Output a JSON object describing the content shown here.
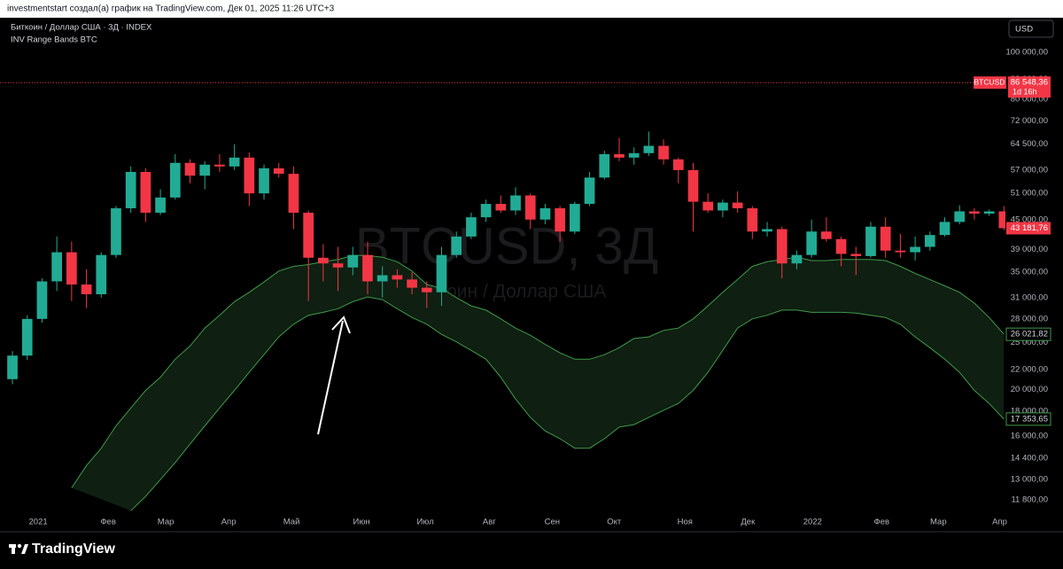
{
  "header": {
    "text": "investmentstart создал(а) график на TradingView.com, Дек 01, 2025 11:26 UTC+3"
  },
  "footer": {
    "logo": "TradingView"
  },
  "currency_button": "USD",
  "chart_data": {
    "type": "candlestick",
    "log_scale": true,
    "watermark": {
      "symbol": "BTCUSD, 3Д",
      "description": "Биткоин / Доллар США"
    },
    "xlim": [
      -0.84,
      67.1
    ],
    "xticks": [
      {
        "value": 1.74,
        "label": "2021"
      },
      {
        "value": 6.47,
        "label": "Фев"
      },
      {
        "value": 10.36,
        "label": "Мар"
      },
      {
        "value": 14.61,
        "label": "Апр"
      },
      {
        "value": 18.86,
        "label": "Май"
      },
      {
        "value": 23.59,
        "label": "Июн"
      },
      {
        "value": 27.9,
        "label": "Июл"
      },
      {
        "value": 32.22,
        "label": "Авг"
      },
      {
        "value": 36.47,
        "label": "Сен"
      },
      {
        "value": 40.66,
        "label": "Окт"
      },
      {
        "value": 45.45,
        "label": "Ноя"
      },
      {
        "value": 49.7,
        "label": "Дек"
      },
      {
        "value": 54.07,
        "label": "2022"
      },
      {
        "value": 58.74,
        "label": "Фев"
      },
      {
        "value": 62.57,
        "label": "Мар"
      },
      {
        "value": 66.71,
        "label": "Апр"
      }
    ],
    "ylim": [
      11120,
      118000
    ],
    "yticks": [
      {
        "value": 100000,
        "label": "100 000,00"
      },
      {
        "value": 88000,
        "label": "88 000,00"
      },
      {
        "value": 80000,
        "label": "80 000,00"
      },
      {
        "value": 72000,
        "label": "72 000,00"
      },
      {
        "value": 64500,
        "label": "64 500,00"
      },
      {
        "value": 57000,
        "label": "57 000,00"
      },
      {
        "value": 51000,
        "label": "51 000,00"
      },
      {
        "value": 45000,
        "label": "45 000,00"
      },
      {
        "value": 39000,
        "label": "39 000,00"
      },
      {
        "value": 35000,
        "label": "35 000,00"
      },
      {
        "value": 31000,
        "label": "31 000,00"
      },
      {
        "value": 28000,
        "label": "28 000,00"
      },
      {
        "value": 25000,
        "label": "25 000,00"
      },
      {
        "value": 22000,
        "label": "22 000,00"
      },
      {
        "value": 20000,
        "label": "20 000,00"
      },
      {
        "value": 18000,
        "label": "18 000,00"
      },
      {
        "value": 16000,
        "label": "16 000,00"
      },
      {
        "value": 14400,
        "label": "14 400,00"
      },
      {
        "value": 13000,
        "label": "13 000,00"
      },
      {
        "value": 11800,
        "label": "11 800,00"
      }
    ],
    "last_price": {
      "symbol": "BTCUSD",
      "value": 86548.36,
      "label": "86 548,36",
      "countdown": "1d 16h",
      "color": "#f23645"
    },
    "series": [
      {
        "name": "Биткоин / Доллар США · 3Д · INDEX",
        "up_color": "#22ab94",
        "down_color": "#f23645",
        "open": [
          21000,
          23500,
          28000,
          33500,
          38500,
          33000,
          31500,
          38000,
          47500,
          56500,
          46500,
          50000,
          59000,
          55500,
          58500,
          58000,
          60500,
          51000,
          57500,
          56000,
          46500,
          37500,
          36500,
          35800,
          38000,
          33500,
          34500,
          33800,
          32500,
          31800,
          38000,
          41500,
          45500,
          48500,
          47000,
          50500,
          45000,
          47500,
          42500,
          48500,
          55000,
          61500,
          60500,
          61800,
          64000,
          60000,
          57000,
          49000,
          47000,
          48800,
          47500,
          42500,
          43000,
          36500,
          38000,
          42500,
          41000,
          38200,
          37800,
          43500,
          38800,
          38500,
          39500,
          41800,
          44500,
          46800,
          46300,
          46800
        ],
        "high": [
          24000,
          28500,
          34000,
          41500,
          40500,
          35500,
          38500,
          48000,
          58000,
          57500,
          52000,
          61500,
          60000,
          59500,
          61500,
          64500,
          62000,
          58500,
          59000,
          58000,
          47000,
          40000,
          39500,
          39500,
          40500,
          36000,
          35500,
          35000,
          33500,
          39500,
          42500,
          46500,
          49500,
          50500,
          52500,
          51000,
          48500,
          48000,
          49000,
          56500,
          62500,
          66500,
          63500,
          68500,
          66000,
          60500,
          59000,
          51000,
          49500,
          51500,
          48000,
          44500,
          43500,
          38800,
          45000,
          45500,
          41500,
          39500,
          44500,
          45500,
          42000,
          41500,
          42500,
          45500,
          48200,
          47500,
          47200,
          48000
        ],
        "low": [
          20500,
          23000,
          27500,
          32000,
          30500,
          29500,
          31000,
          37500,
          46500,
          44500,
          46000,
          49500,
          53500,
          52000,
          56500,
          57000,
          48000,
          49500,
          55000,
          43000,
          30500,
          33500,
          32000,
          34500,
          31500,
          31000,
          32500,
          31500,
          29500,
          29800,
          37500,
          41000,
          44500,
          46500,
          46000,
          43000,
          44000,
          40500,
          42000,
          48000,
          54500,
          59500,
          58500,
          61000,
          58500,
          53500,
          42500,
          46500,
          45500,
          46500,
          41000,
          41500,
          34000,
          35500,
          37500,
          40500,
          36000,
          34500,
          37500,
          37500,
          37500,
          37000,
          38800,
          41500,
          44000,
          45000,
          45800,
          42800
        ],
        "close": [
          23500,
          28000,
          33500,
          38500,
          33000,
          31500,
          38000,
          47500,
          56500,
          46500,
          50000,
          59000,
          55500,
          58500,
          58000,
          60500,
          51000,
          57500,
          56000,
          46500,
          37500,
          36500,
          35800,
          38000,
          33500,
          34500,
          33800,
          32500,
          31800,
          38000,
          41500,
          45500,
          48500,
          47000,
          50500,
          45000,
          47500,
          42500,
          48500,
          55000,
          61500,
          60500,
          61800,
          64000,
          60000,
          57000,
          49000,
          47000,
          48800,
          47500,
          42500,
          43000,
          36500,
          38000,
          42500,
          41000,
          38200,
          37800,
          43500,
          38800,
          38500,
          39500,
          41800,
          44500,
          46800,
          46300,
          46800,
          43181.76
        ],
        "close_value_label": "43 181,76"
      },
      {
        "name": "INV Range Bands BTC",
        "color": "#3f9a4a",
        "fill": "#0f1f11",
        "upper": [
          null,
          null,
          null,
          null,
          12500,
          13900,
          15100,
          16800,
          18300,
          19900,
          21200,
          23100,
          24600,
          26800,
          28500,
          30400,
          31800,
          33400,
          35200,
          36000,
          36300,
          36800,
          37200,
          37900,
          37900,
          37600,
          36800,
          35200,
          33000,
          32400,
          31000,
          29800,
          29200,
          28000,
          26800,
          25900,
          24800,
          23800,
          23100,
          23100,
          23600,
          24400,
          25500,
          25700,
          26500,
          26800,
          28000,
          29800,
          31800,
          33800,
          36000,
          36800,
          37200,
          37600,
          37000,
          37000,
          37200,
          37200,
          37200,
          37000,
          36000,
          34800,
          33800,
          32800,
          31800,
          30200,
          28200,
          26021.82
        ],
        "lower": [
          null,
          null,
          null,
          null,
          null,
          null,
          null,
          null,
          11200,
          12000,
          13000,
          14100,
          15400,
          16800,
          18300,
          19900,
          21700,
          23600,
          25700,
          27300,
          28500,
          28900,
          29400,
          30400,
          31100,
          30700,
          29400,
          28200,
          27300,
          26000,
          25100,
          24100,
          23100,
          21200,
          19100,
          17500,
          16400,
          15800,
          15100,
          15100,
          15800,
          16700,
          16900,
          17500,
          18100,
          18700,
          19900,
          21700,
          24100,
          26800,
          28000,
          28500,
          29200,
          29200,
          28900,
          28900,
          28900,
          28800,
          28500,
          28200,
          27300,
          25700,
          24400,
          23100,
          21700,
          19900,
          18700,
          17353.65
        ],
        "upper_value_label": "26 021,82",
        "lower_value_label": "17 353,65"
      }
    ]
  }
}
